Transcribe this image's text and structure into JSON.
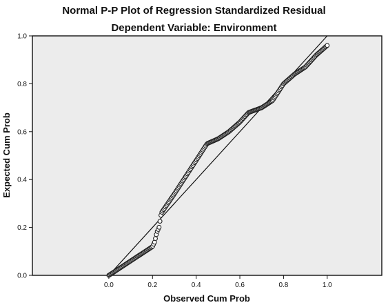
{
  "chart_data": {
    "type": "scatter",
    "title": "Normal P-P Plot of Regression Standardized Residual",
    "subtitle": "Dependent Variable: Environment",
    "xlabel": "Observed Cum Prob",
    "ylabel": "Expected Cum Prob",
    "xlim": [
      -0.35,
      1.25
    ],
    "ylim": [
      0.0,
      1.0
    ],
    "x_ticks": [
      "0.0",
      "0.2",
      "0.4",
      "0.6",
      "0.8",
      "1.0"
    ],
    "y_ticks": [
      "0.0",
      "0.2",
      "0.4",
      "0.6",
      "0.8",
      "1.0"
    ],
    "grid": false,
    "plot_background": "#ececec",
    "point_color": "#222222",
    "line_color": "#111111",
    "reference_line": {
      "from": [
        0.0,
        0.0
      ],
      "to": [
        1.0,
        1.0
      ]
    },
    "anchor_points": [
      [
        0.0,
        0.0
      ],
      [
        0.05,
        0.03
      ],
      [
        0.1,
        0.06
      ],
      [
        0.15,
        0.09
      ],
      [
        0.2,
        0.12
      ],
      [
        0.21,
        0.14
      ],
      [
        0.22,
        0.18
      ],
      [
        0.23,
        0.2
      ],
      [
        0.24,
        0.26
      ],
      [
        0.3,
        0.34
      ],
      [
        0.35,
        0.41
      ],
      [
        0.4,
        0.48
      ],
      [
        0.45,
        0.55
      ],
      [
        0.5,
        0.57
      ],
      [
        0.55,
        0.6
      ],
      [
        0.6,
        0.64
      ],
      [
        0.64,
        0.68
      ],
      [
        0.7,
        0.7
      ],
      [
        0.75,
        0.73
      ],
      [
        0.8,
        0.8
      ],
      [
        0.85,
        0.84
      ],
      [
        0.9,
        0.87
      ],
      [
        0.95,
        0.92
      ],
      [
        1.0,
        0.96
      ]
    ],
    "point_count": 240
  }
}
